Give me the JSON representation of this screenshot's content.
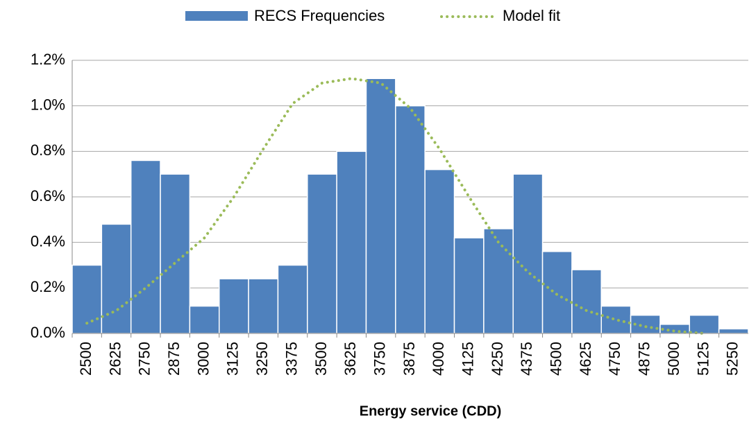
{
  "chart_data": {
    "type": "bar",
    "x_label": "Energy service (CDD)",
    "categories": [
      "2500",
      "2625",
      "2750",
      "2875",
      "3000",
      "3125",
      "3250",
      "3375",
      "3500",
      "3625",
      "3750",
      "3875",
      "4000",
      "4125",
      "4250",
      "4375",
      "4500",
      "4625",
      "4750",
      "4875",
      "5000",
      "5125",
      "5250"
    ],
    "series": [
      {
        "name": "RECS Frequencies",
        "type": "bar",
        "color": "#4f81bd",
        "values": [
          0.3,
          0.48,
          0.76,
          0.7,
          0.12,
          0.24,
          0.24,
          0.3,
          0.7,
          0.8,
          1.12,
          1.0,
          0.72,
          0.42,
          0.46,
          0.7,
          0.36,
          0.28,
          0.12,
          0.08,
          0.04,
          0.08,
          0.02
        ]
      },
      {
        "name": "Model fit",
        "type": "line",
        "color": "#9bbb59",
        "values": [
          0.045,
          0.1,
          0.2,
          0.31,
          0.42,
          0.6,
          0.81,
          1.01,
          1.1,
          1.12,
          1.1,
          0.99,
          0.81,
          0.6,
          0.4,
          0.27,
          0.17,
          0.1,
          0.06,
          0.03,
          0.01,
          0.0,
          null
        ]
      }
    ],
    "ylim": [
      0,
      1.2
    ],
    "yticks": [
      {
        "value": 0,
        "label": "0.0%"
      },
      {
        "value": 0.2,
        "label": "0.2%"
      },
      {
        "value": 0.4,
        "label": "0.4%"
      },
      {
        "value": 0.6,
        "label": "0.6%"
      },
      {
        "value": 0.8,
        "label": "0.8%"
      },
      {
        "value": 1.0,
        "label": "1.0%"
      },
      {
        "value": 1.2,
        "label": "1.2%"
      }
    ],
    "grid": true,
    "legend": "top"
  }
}
